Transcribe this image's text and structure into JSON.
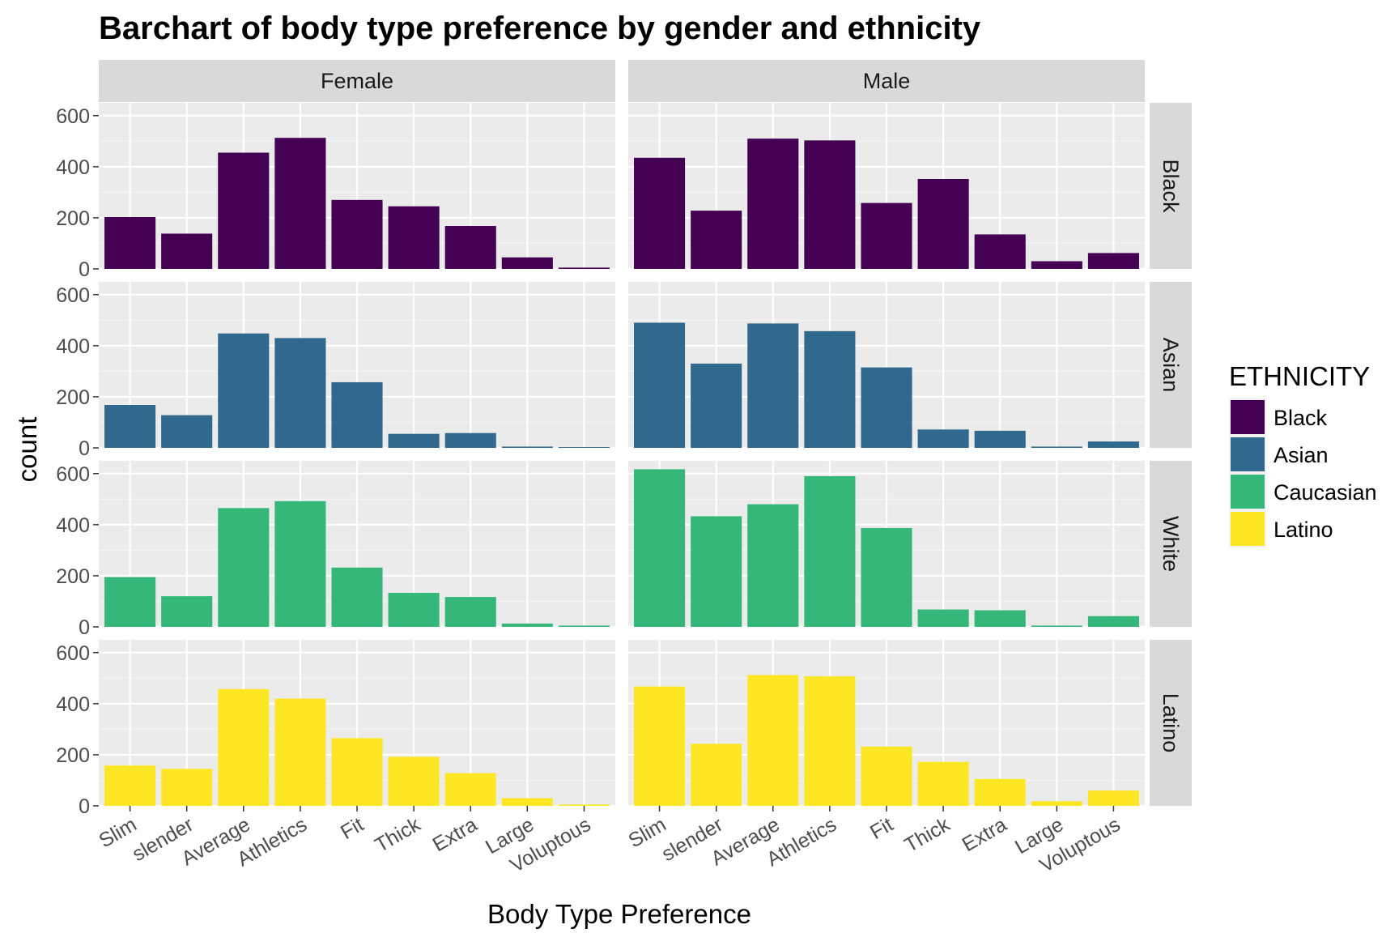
{
  "chart_data": {
    "type": "bar",
    "title": "Barchart of body type preference by gender and ethnicity",
    "xlabel": "Body Type Preference",
    "ylabel": "count",
    "ylim": [
      0,
      650
    ],
    "yticks": [
      0,
      200,
      400,
      600
    ],
    "categories": [
      "Slim",
      "slender",
      "Average",
      "Athletics",
      "Fit",
      "Thick",
      "Extra",
      "Large",
      "Voluptous"
    ],
    "columns": [
      "Female",
      "Male"
    ],
    "rows": [
      "Black",
      "Asian",
      "White",
      "Latino"
    ],
    "legend": {
      "title": "ETHNICITY",
      "position": "right",
      "items": [
        {
          "label": "Black",
          "color": "#440154"
        },
        {
          "label": "Asian",
          "color": "#31688e"
        },
        {
          "label": "Caucasian",
          "color": "#35b779"
        },
        {
          "label": "Latino",
          "color": "#fde725"
        }
      ]
    },
    "grid": true,
    "panels": [
      {
        "column": "Female",
        "row": "Black",
        "color": "#440154",
        "values": [
          203,
          138,
          455,
          513,
          270,
          245,
          168,
          45,
          5
        ]
      },
      {
        "column": "Male",
        "row": "Black",
        "color": "#440154",
        "values": [
          435,
          228,
          510,
          503,
          258,
          352,
          135,
          30,
          62
        ]
      },
      {
        "column": "Female",
        "row": "Asian",
        "color": "#31688e",
        "values": [
          168,
          128,
          448,
          430,
          257,
          55,
          58,
          5,
          3
        ]
      },
      {
        "column": "Male",
        "row": "Asian",
        "color": "#31688e",
        "values": [
          490,
          330,
          487,
          457,
          315,
          72,
          67,
          5,
          25
        ]
      },
      {
        "column": "Female",
        "row": "White",
        "color": "#35b779",
        "values": [
          195,
          120,
          465,
          492,
          232,
          133,
          117,
          13,
          5
        ]
      },
      {
        "column": "Male",
        "row": "White",
        "color": "#35b779",
        "values": [
          617,
          433,
          480,
          590,
          387,
          68,
          65,
          5,
          42
        ]
      },
      {
        "column": "Female",
        "row": "Latino",
        "color": "#fde725",
        "values": [
          158,
          145,
          457,
          420,
          265,
          192,
          128,
          30,
          5
        ]
      },
      {
        "column": "Male",
        "row": "Latino",
        "color": "#fde725",
        "values": [
          467,
          243,
          512,
          507,
          232,
          172,
          105,
          18,
          60
        ]
      }
    ]
  }
}
